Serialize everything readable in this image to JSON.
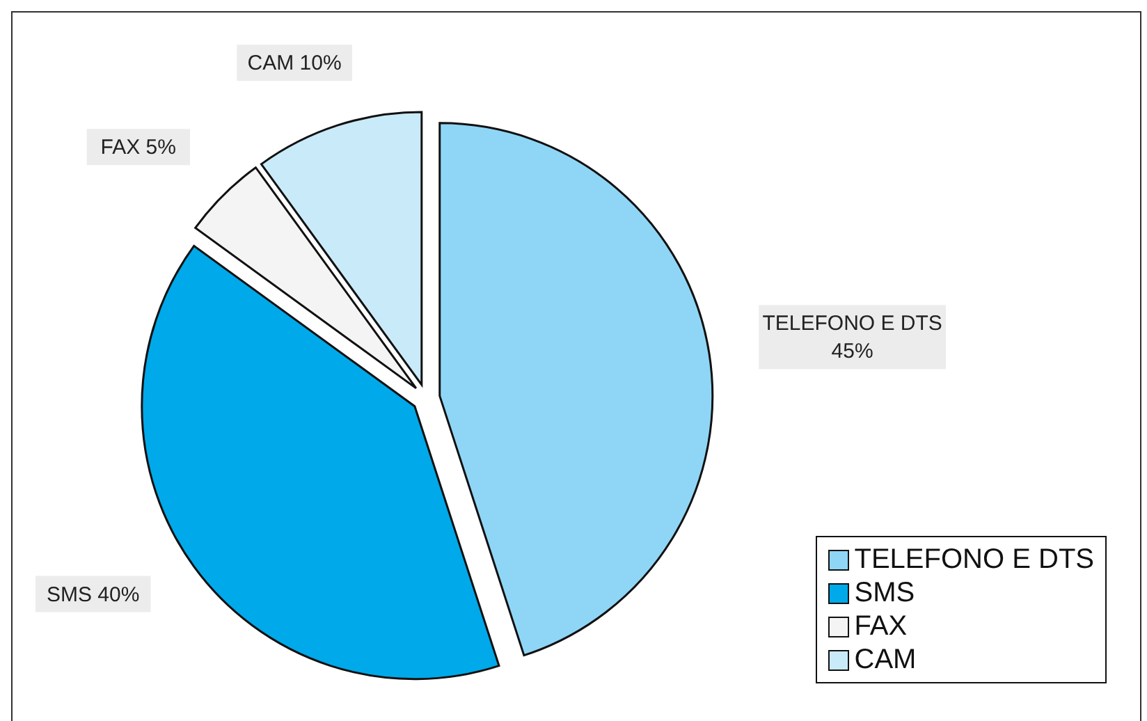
{
  "chart_data": {
    "type": "pie",
    "categories": [
      "TELEFONO E DTS",
      "SMS",
      "FAX",
      "CAM"
    ],
    "values": [
      45,
      40,
      5,
      10
    ],
    "value_labels": [
      "45%",
      "40%",
      "5%",
      "10%"
    ],
    "colors": [
      "#8fd6f6",
      "#00a9ea",
      "#f4f4f4",
      "#c9eaf9"
    ],
    "legend": "bottom right"
  }
}
